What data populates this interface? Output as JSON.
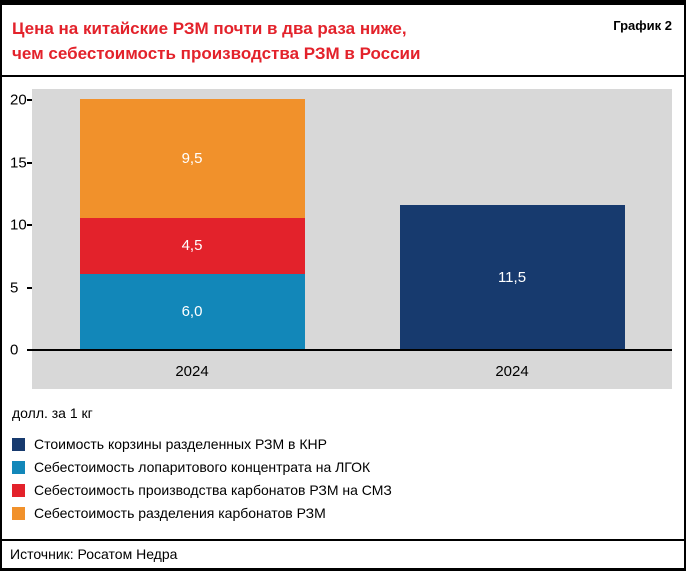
{
  "header": {
    "title_line1": "Цена на китайские РЗМ почти в два раза ниже,",
    "title_line2": "чем себестоимость производства РЗМ в России",
    "figure_label": "График 2"
  },
  "axis_note": "долл. за 1 кг",
  "source": "Источник: Росатом Недра",
  "colors": {
    "navy": "#173a6e",
    "blue": "#1287b9",
    "red": "#e3222b",
    "orange": "#f1912b",
    "plot_background": "#d8d8d8",
    "title_red": "#e3222b"
  },
  "chart_data": {
    "type": "bar",
    "stacked": true,
    "title": "Цена на китайские РЗМ почти в два раза ниже, чем себестоимость производства РЗМ в России",
    "ylabel": "долл. за 1 кг",
    "ylim": [
      0,
      20
    ],
    "yticks": [
      0,
      5,
      10,
      15,
      20
    ],
    "categories": [
      "2024",
      "2024"
    ],
    "bars": [
      {
        "category": "2024",
        "segments": [
          {
            "name": "Себестоимость лопаритового концентрата на ЛГОК",
            "value": 6.0,
            "label": "6,0",
            "color": "#1287b9"
          },
          {
            "name": "Себестоимость производства карбонатов РЗМ на СМЗ",
            "value": 4.5,
            "label": "4,5",
            "color": "#e3222b"
          },
          {
            "name": "Себестоимость разделения карбонатов РЗМ",
            "value": 9.5,
            "label": "9,5",
            "color": "#f1912b"
          }
        ]
      },
      {
        "category": "2024",
        "segments": [
          {
            "name": "Стоимость корзины разделенных РЗМ в КНР",
            "value": 11.5,
            "label": "11,5",
            "color": "#173a6e"
          }
        ]
      }
    ]
  },
  "legend": {
    "items": [
      {
        "color": "#173a6e",
        "label": "Стоимость корзины разделенных РЗМ в КНР"
      },
      {
        "color": "#1287b9",
        "label": "Себестоимость лопаритового концентрата на ЛГОК"
      },
      {
        "color": "#e3222b",
        "label": "Себестоимость производства карбонатов РЗМ на СМЗ"
      },
      {
        "color": "#f1912b",
        "label": "Себестоимость разделения карбонатов РЗМ"
      }
    ]
  }
}
